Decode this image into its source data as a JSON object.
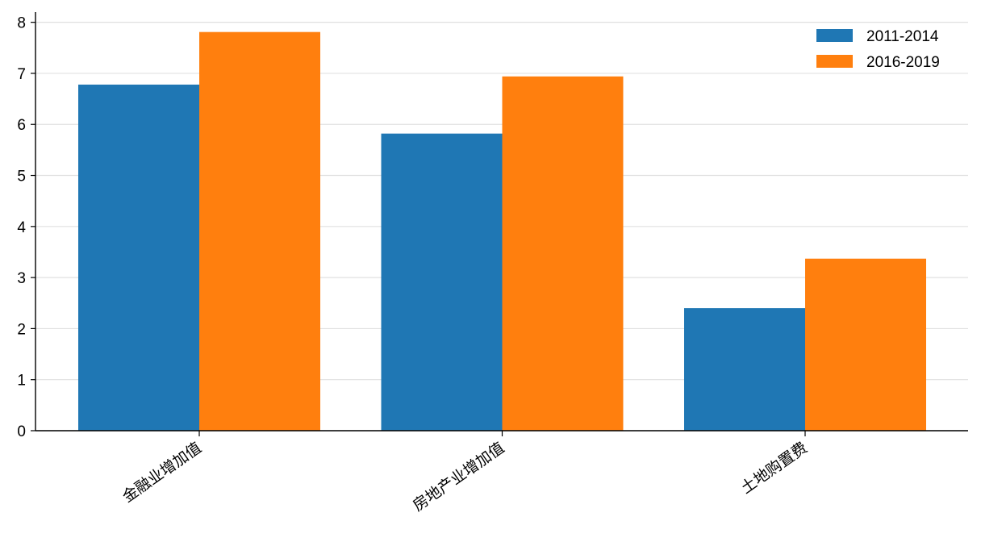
{
  "chart_data": {
    "type": "bar",
    "categories": [
      "金融业增加值",
      "房地产业增加值",
      "土地购置费"
    ],
    "series": [
      {
        "name": "2011-2014",
        "color": "#1f77b4",
        "values": [
          6.78,
          5.82,
          2.4
        ]
      },
      {
        "name": "2016-2019",
        "color": "#ff7f0e",
        "values": [
          7.81,
          6.94,
          3.37
        ]
      }
    ],
    "ylim": [
      0,
      8.2
    ],
    "yticks": [
      0,
      1,
      2,
      3,
      4,
      5,
      6,
      7,
      8
    ],
    "grid": true,
    "legend": "upper right"
  }
}
